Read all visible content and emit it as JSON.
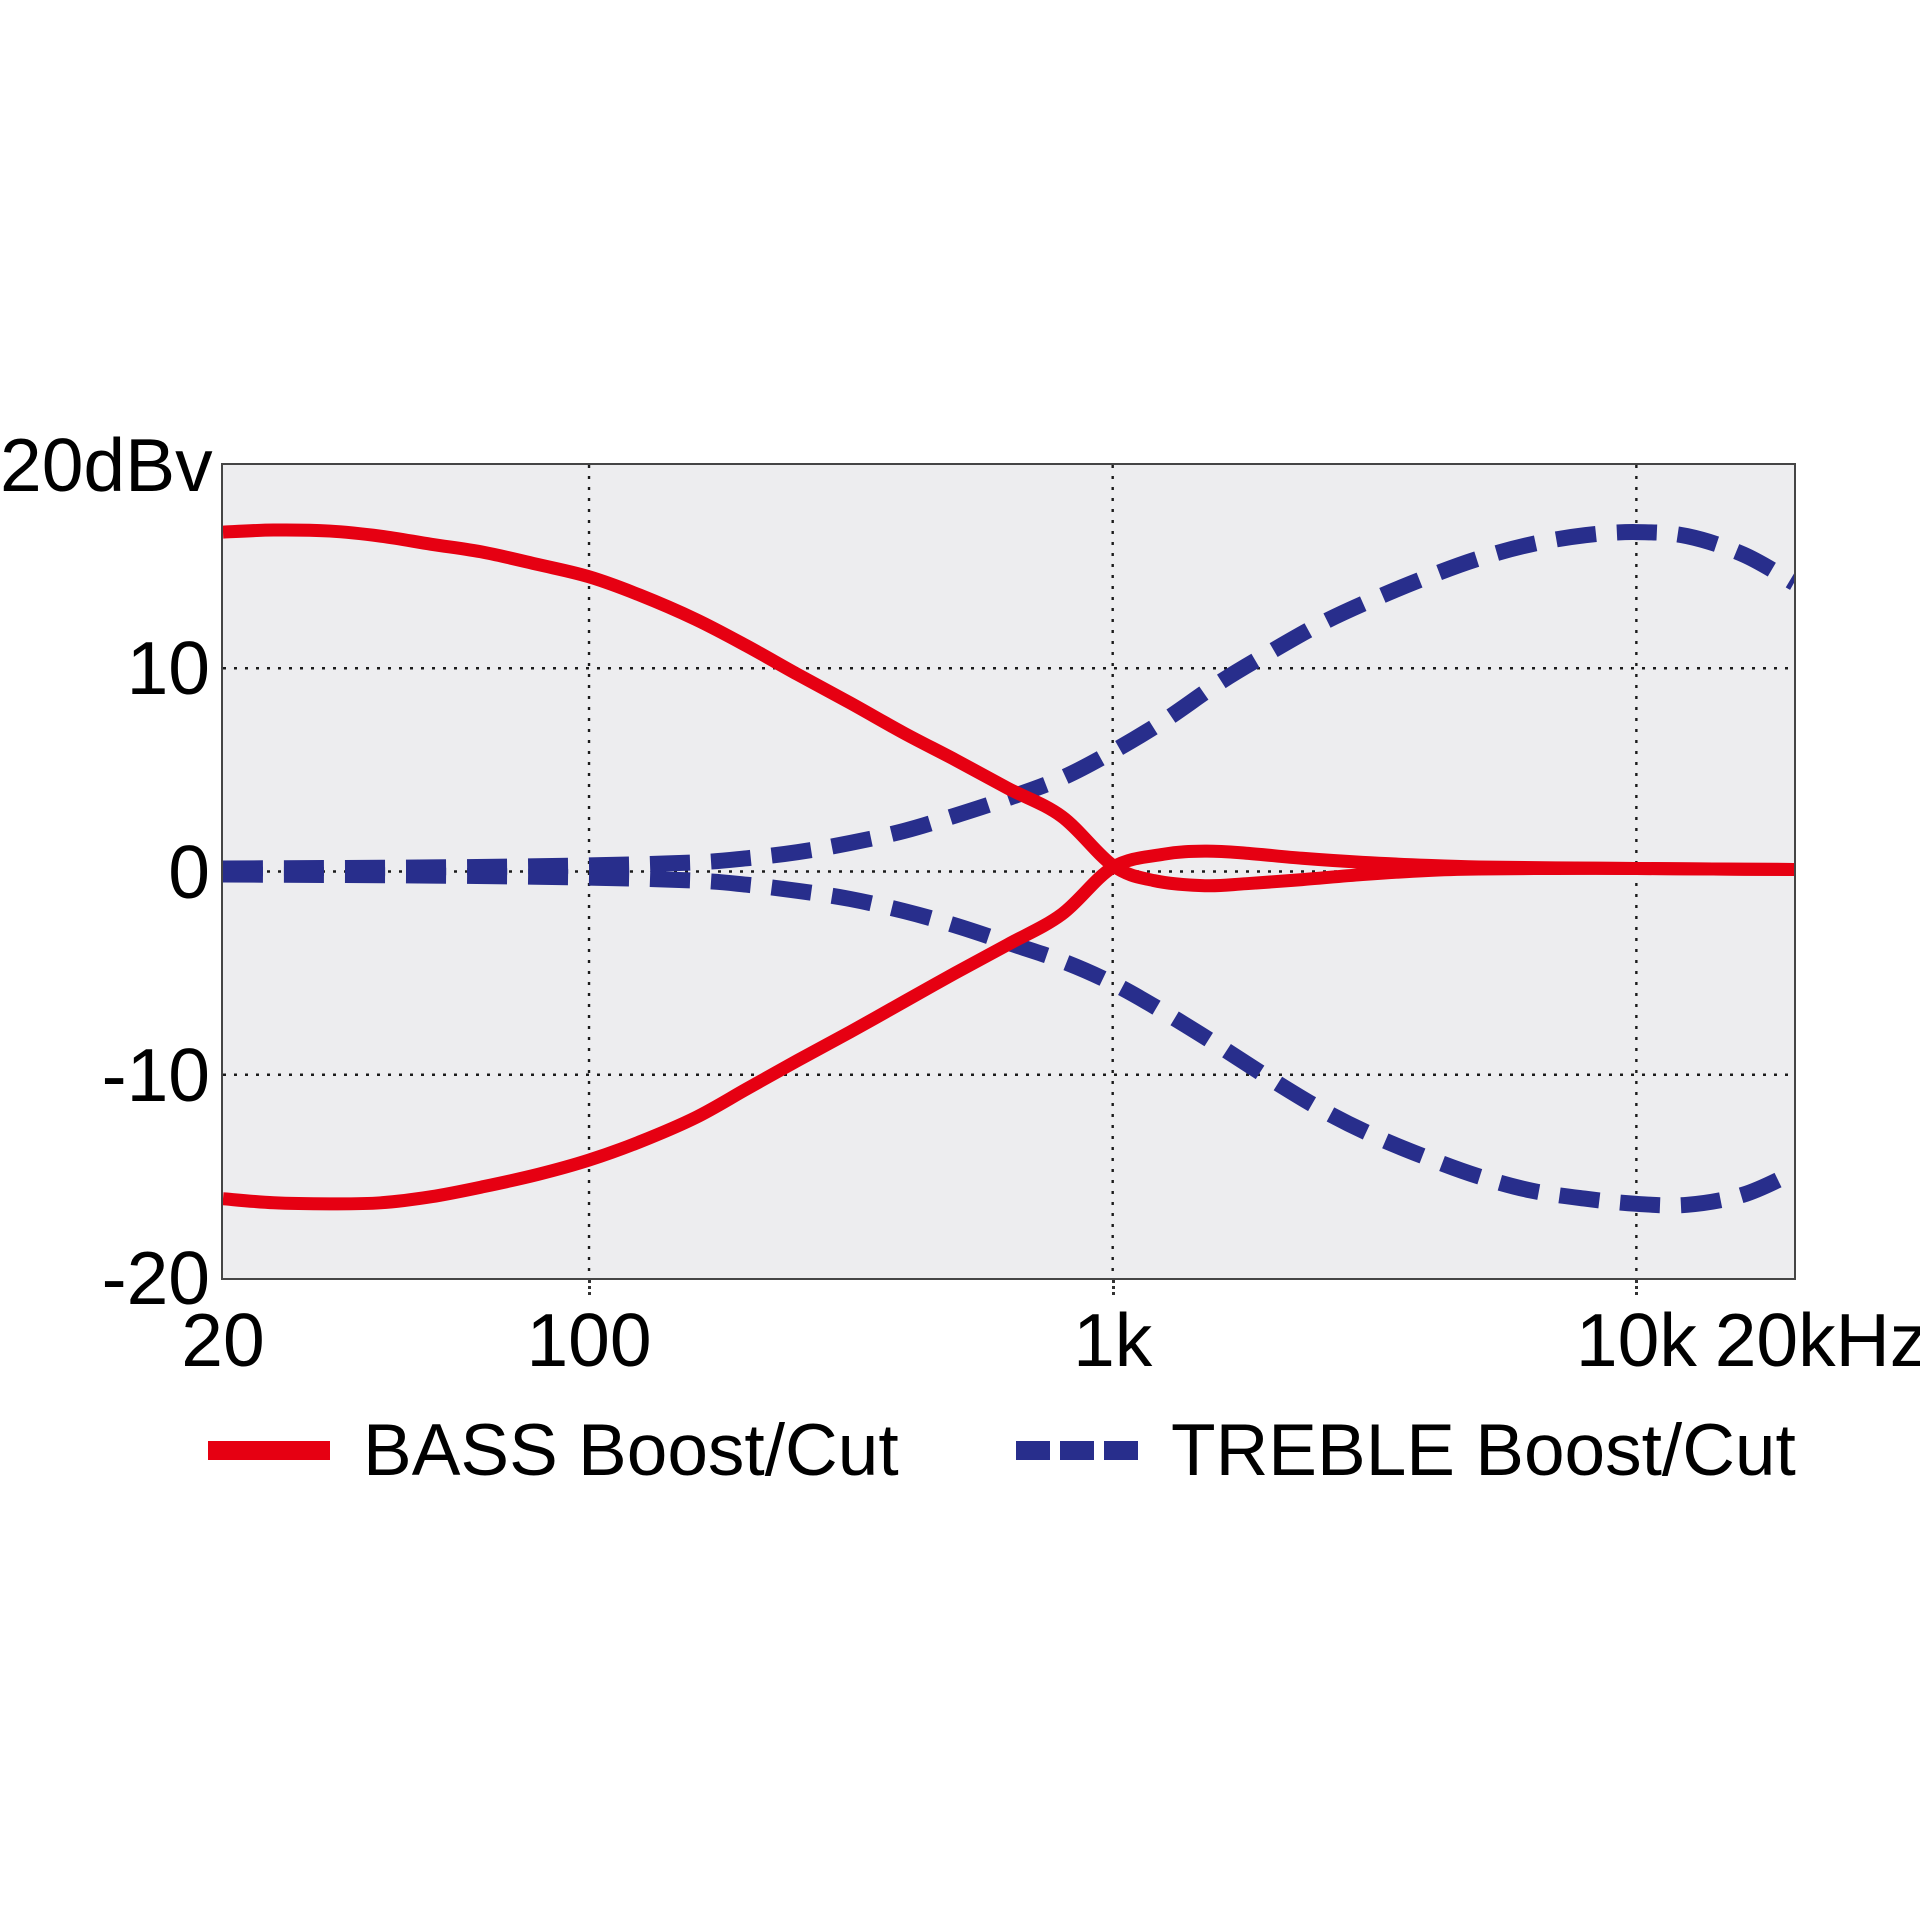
{
  "colors": {
    "bass": "#e60012",
    "treble": "#282e8c",
    "plot_background": "#ededef",
    "grid": "#1b1b1b",
    "border": "#454545",
    "text": "#000000"
  },
  "chart_data": {
    "type": "line",
    "title": "",
    "x_axis": {
      "scale": "log",
      "min": 20,
      "max": 20000,
      "unit": "Hz",
      "ticks": [
        {
          "f": 20,
          "label": "20",
          "grid": false
        },
        {
          "f": 100,
          "label": "100",
          "grid": true
        },
        {
          "f": 1000,
          "label": "1k",
          "grid": true
        },
        {
          "f": 10000,
          "label": "10k",
          "grid": true
        },
        {
          "f": 20000,
          "label": "20kHz",
          "grid": false
        }
      ]
    },
    "y_axis": {
      "unit": "dBv",
      "min": -20,
      "max": 20,
      "ticks": [
        {
          "db": 20,
          "label": "20dBv",
          "grid": false
        },
        {
          "db": 10,
          "label": "10",
          "grid": true
        },
        {
          "db": 0,
          "label": "0",
          "grid": true
        },
        {
          "db": -10,
          "label": "-10",
          "grid": true
        },
        {
          "db": -20,
          "label": "-20",
          "grid": false
        }
      ]
    },
    "legend": [
      {
        "label": "BASS Boost/Cut",
        "color": "#e60012",
        "style": "solid"
      },
      {
        "label": "TREBLE Boost/Cut",
        "color": "#282e8c",
        "style": "dashed"
      }
    ],
    "series": [
      {
        "name": "bass-boost",
        "legend": "BASS Boost/Cut",
        "color": "#e60012",
        "style": "solid",
        "points": [
          [
            20,
            16.7
          ],
          [
            25,
            16.8
          ],
          [
            32,
            16.75
          ],
          [
            40,
            16.5
          ],
          [
            50,
            16.1
          ],
          [
            63,
            15.7
          ],
          [
            80,
            15.1
          ],
          [
            100,
            14.5
          ],
          [
            125,
            13.6
          ],
          [
            160,
            12.4
          ],
          [
            200,
            11.1
          ],
          [
            250,
            9.7
          ],
          [
            315,
            8.3
          ],
          [
            400,
            6.8
          ],
          [
            500,
            5.5
          ],
          [
            630,
            4.1
          ],
          [
            800,
            2.7
          ],
          [
            1000,
            0.3
          ],
          [
            1200,
            -0.45
          ],
          [
            1500,
            -0.7
          ],
          [
            1800,
            -0.6
          ],
          [
            2300,
            -0.4
          ],
          [
            3000,
            -0.15
          ],
          [
            4000,
            0.05
          ],
          [
            5000,
            0.12
          ],
          [
            7000,
            0.15
          ],
          [
            10000,
            0.15
          ],
          [
            14000,
            0.12
          ],
          [
            20000,
            0.1
          ]
        ]
      },
      {
        "name": "bass-cut",
        "legend": "BASS Boost/Cut",
        "color": "#e60012",
        "style": "solid",
        "points": [
          [
            20,
            -16.1
          ],
          [
            25,
            -16.3
          ],
          [
            32,
            -16.35
          ],
          [
            40,
            -16.3
          ],
          [
            50,
            -16.0
          ],
          [
            63,
            -15.5
          ],
          [
            80,
            -14.9
          ],
          [
            100,
            -14.2
          ],
          [
            125,
            -13.3
          ],
          [
            160,
            -12.1
          ],
          [
            200,
            -10.7
          ],
          [
            250,
            -9.3
          ],
          [
            315,
            -7.9
          ],
          [
            400,
            -6.4
          ],
          [
            500,
            -5.0
          ],
          [
            630,
            -3.6
          ],
          [
            800,
            -2.1
          ],
          [
            1000,
            0.2
          ],
          [
            1250,
            0.85
          ],
          [
            1500,
            1.0
          ],
          [
            1800,
            0.9
          ],
          [
            2300,
            0.65
          ],
          [
            3000,
            0.45
          ],
          [
            4000,
            0.3
          ],
          [
            5000,
            0.22
          ],
          [
            7000,
            0.18
          ],
          [
            10000,
            0.15
          ],
          [
            14000,
            0.12
          ],
          [
            20000,
            0.1
          ]
        ]
      },
      {
        "name": "treble-boost",
        "legend": "TREBLE Boost/Cut",
        "color": "#282e8c",
        "style": "dashed",
        "points": [
          [
            20,
            0.15
          ],
          [
            50,
            0.2
          ],
          [
            100,
            0.3
          ],
          [
            160,
            0.45
          ],
          [
            200,
            0.65
          ],
          [
            250,
            0.95
          ],
          [
            315,
            1.4
          ],
          [
            400,
            2.0
          ],
          [
            500,
            2.75
          ],
          [
            630,
            3.6
          ],
          [
            800,
            4.6
          ],
          [
            1000,
            5.9
          ],
          [
            1250,
            7.4
          ],
          [
            1600,
            9.3
          ],
          [
            2000,
            10.8
          ],
          [
            2500,
            12.2
          ],
          [
            3150,
            13.4
          ],
          [
            4000,
            14.5
          ],
          [
            5000,
            15.4
          ],
          [
            6300,
            16.1
          ],
          [
            8000,
            16.55
          ],
          [
            10000,
            16.7
          ],
          [
            12500,
            16.5
          ],
          [
            16000,
            15.6
          ],
          [
            20000,
            14.2
          ]
        ]
      },
      {
        "name": "treble-cut",
        "legend": "TREBLE Boost/Cut",
        "color": "#282e8c",
        "style": "dashed",
        "points": [
          [
            20,
            -0.15
          ],
          [
            50,
            -0.2
          ],
          [
            100,
            -0.3
          ],
          [
            160,
            -0.45
          ],
          [
            200,
            -0.65
          ],
          [
            250,
            -0.95
          ],
          [
            315,
            -1.35
          ],
          [
            400,
            -1.95
          ],
          [
            500,
            -2.65
          ],
          [
            630,
            -3.5
          ],
          [
            800,
            -4.4
          ],
          [
            1000,
            -5.5
          ],
          [
            1250,
            -6.9
          ],
          [
            1600,
            -8.6
          ],
          [
            2000,
            -10.2
          ],
          [
            2500,
            -11.7
          ],
          [
            3150,
            -13.0
          ],
          [
            4000,
            -14.1
          ],
          [
            5000,
            -15.0
          ],
          [
            6300,
            -15.7
          ],
          [
            8000,
            -16.1
          ],
          [
            10000,
            -16.35
          ],
          [
            12500,
            -16.4
          ],
          [
            16000,
            -15.9
          ],
          [
            20000,
            -14.8
          ]
        ]
      }
    ],
    "grid": {
      "vertical_at_hz": [
        100,
        1000,
        10000
      ],
      "horizontal_at_db": [
        10,
        0,
        -10
      ]
    }
  }
}
